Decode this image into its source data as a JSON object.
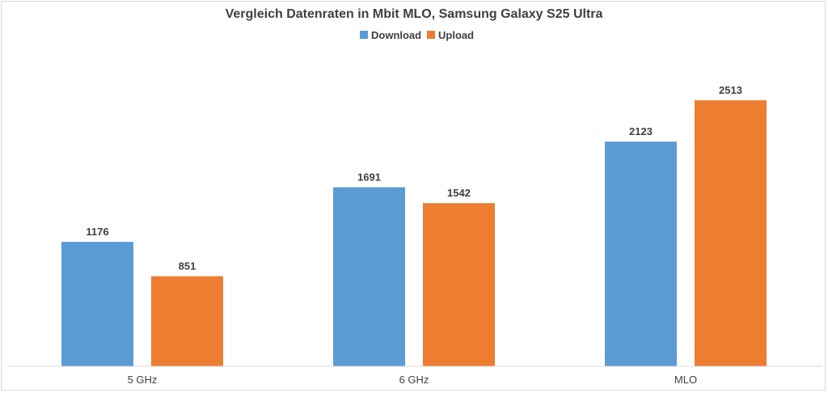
{
  "chart_data": {
    "type": "bar",
    "title": "Vergleich Datenraten in Mbit MLO, Samsung Galaxy S25 Ultra",
    "categories": [
      "5 GHz",
      "6 GHz",
      "MLO"
    ],
    "series": [
      {
        "name": "Download",
        "color": "#5b9bd5",
        "values": [
          1176,
          1691,
          2123
        ]
      },
      {
        "name": "Upload",
        "color": "#ed7d31",
        "values": [
          851,
          1542,
          2513
        ]
      }
    ],
    "ylim": [
      0,
      2800
    ],
    "grid": false,
    "legend": "top-center",
    "xlabel": "",
    "ylabel": ""
  }
}
